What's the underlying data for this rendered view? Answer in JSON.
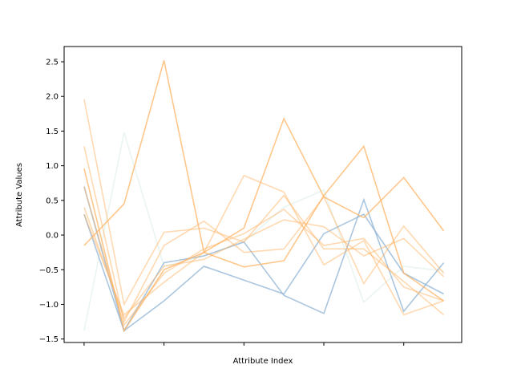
{
  "chart_data": {
    "type": "line",
    "title": "",
    "xlabel": "Attribute Index",
    "ylabel": "Attribute Values",
    "x": [
      0,
      1,
      2,
      3,
      4,
      5,
      6,
      7,
      8,
      9
    ],
    "xlim": [
      -0.5,
      9.45
    ],
    "ylim": [
      -1.55,
      2.72
    ],
    "xticks": [
      0,
      2,
      4,
      6,
      8
    ],
    "show_xtick_labels": false,
    "yticks": [
      -1.5,
      -1.0,
      -0.5,
      0.0,
      0.5,
      1.0,
      1.5,
      2.0,
      2.5
    ],
    "ytick_labels": [
      "−1.5",
      "−1.0",
      "−0.5",
      "0.0",
      "0.5",
      "1.0",
      "1.5",
      "2.0",
      "2.5"
    ],
    "grid": false,
    "series": [
      {
        "color": "#a8d8c8",
        "opacity": 0.25,
        "values": [
          -1.38,
          1.48,
          -0.45,
          -0.3,
          -0.1,
          0.4,
          0.65,
          -0.97,
          -0.45,
          -0.52
        ]
      },
      {
        "color": "#8fb3d4",
        "opacity": 0.75,
        "values": [
          0.7,
          -1.38,
          -0.95,
          -0.45,
          -0.65,
          -0.85,
          0.02,
          0.3,
          -0.55,
          -0.85
        ]
      },
      {
        "color": "#8fb3d4",
        "opacity": 0.75,
        "values": [
          0.3,
          -1.38,
          -0.4,
          -0.3,
          -0.1,
          -0.87,
          -1.13,
          0.51,
          -1.1,
          -0.4
        ]
      },
      {
        "color": "#ffb464",
        "opacity": 0.75,
        "values": [
          -0.15,
          0.45,
          2.52,
          -0.25,
          -0.46,
          -0.37,
          0.57,
          1.28,
          -0.55,
          -0.95
        ]
      },
      {
        "color": "#ffb464",
        "opacity": 0.75,
        "values": [
          0.96,
          -1.38,
          -0.5,
          -0.25,
          0.1,
          1.68,
          0.55,
          0.25,
          0.83,
          0.06
        ]
      },
      {
        "color": "#ffb464",
        "opacity": 0.5,
        "values": [
          1.96,
          -1.0,
          0.04,
          0.1,
          -0.1,
          0.57,
          -0.2,
          -0.2,
          -0.67,
          -1.15
        ]
      },
      {
        "color": "#ffb464",
        "opacity": 0.5,
        "values": [
          1.28,
          -1.25,
          -0.15,
          0.2,
          -0.25,
          -0.2,
          0.55,
          -0.7,
          0.13,
          -0.55
        ]
      },
      {
        "color": "#ffb464",
        "opacity": 0.5,
        "values": [
          0.3,
          -1.15,
          -0.68,
          -0.25,
          0.86,
          0.62,
          -0.43,
          -0.08,
          -1.15,
          -0.95
        ]
      },
      {
        "color": "#ffb464",
        "opacity": 0.5,
        "values": [
          0.4,
          -1.2,
          -0.45,
          -0.35,
          -0.06,
          0.22,
          0.12,
          -0.3,
          -0.05,
          -0.6
        ]
      },
      {
        "color": "#ffb464",
        "opacity": 0.5,
        "values": [
          0.7,
          -1.3,
          -0.55,
          -0.2,
          0.02,
          0.37,
          -0.15,
          -0.05,
          -0.75,
          -0.95
        ]
      }
    ]
  }
}
